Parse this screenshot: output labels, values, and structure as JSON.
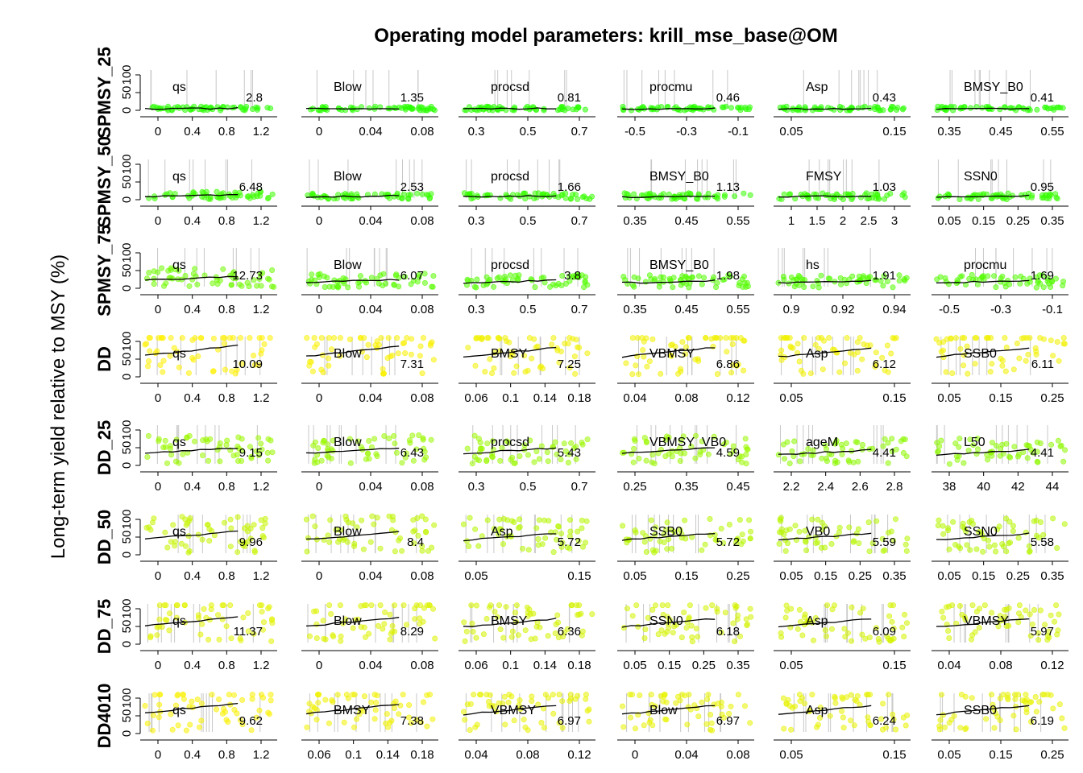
{
  "figure": {
    "title": "Operating model parameters: krill_mse_base@OM",
    "ylabel": "Long-term yield relative to MSY (%)",
    "y_ticks": [
      0,
      50,
      100
    ]
  },
  "chart_data": {
    "type": "scatter",
    "ylim": [
      0,
      100
    ],
    "rows": [
      {
        "label": "SPMSY_25",
        "panels": [
          {
            "param": "qs",
            "value": "2.8",
            "xlim": [
              0,
              1.2
            ],
            "ticks": [
              "0",
              "0.4",
              "0.8",
              "1.2"
            ],
            "level": 5
          },
          {
            "param": "Blow",
            "value": "1.35",
            "xlim": [
              0,
              0.08
            ],
            "ticks": [
              "0",
              "0.04",
              "0.08"
            ],
            "level": 5
          },
          {
            "param": "procsd",
            "value": "0.81",
            "xlim": [
              0.3,
              0.7
            ],
            "ticks": [
              "0.3",
              "0.5",
              "0.7"
            ],
            "level": 5
          },
          {
            "param": "procmu",
            "value": "0.46",
            "xlim": [
              -0.5,
              -0.1
            ],
            "ticks": [
              "-0.5",
              "-0.3",
              "-0.1"
            ],
            "level": 5
          },
          {
            "param": "Asp",
            "value": "0.43",
            "xlim": [
              0.05,
              0.15
            ],
            "ticks": [
              "0.05",
              "0.15"
            ],
            "level": 5
          },
          {
            "param": "BMSY_B0",
            "value": "0.41",
            "xlim": [
              0.35,
              0.55
            ],
            "ticks": [
              "0.35",
              "0.45",
              "0.55"
            ],
            "level": 5
          }
        ]
      },
      {
        "label": "SPMSY_50",
        "panels": [
          {
            "param": "qs",
            "value": "6.48",
            "xlim": [
              0,
              1.2
            ],
            "ticks": [
              "0",
              "0.4",
              "0.8",
              "1.2"
            ],
            "level": 12
          },
          {
            "param": "Blow",
            "value": "2.53",
            "xlim": [
              0,
              0.08
            ],
            "ticks": [
              "0",
              "0.04",
              "0.08"
            ],
            "level": 10
          },
          {
            "param": "procsd",
            "value": "1.66",
            "xlim": [
              0.3,
              0.7
            ],
            "ticks": [
              "0.3",
              "0.5",
              "0.7"
            ],
            "level": 10
          },
          {
            "param": "BMSY_B0",
            "value": "1.13",
            "xlim": [
              0.35,
              0.55
            ],
            "ticks": [
              "0.35",
              "0.45",
              "0.55"
            ],
            "level": 10
          },
          {
            "param": "FMSY",
            "value": "1.03",
            "xlim": [
              1,
              3
            ],
            "ticks": [
              "1",
              "1.5",
              "2",
              "2.5",
              "3"
            ],
            "level": 10
          },
          {
            "param": "SSN0",
            "value": "0.95",
            "xlim": [
              0.05,
              0.35
            ],
            "ticks": [
              "0.05",
              "0.15",
              "0.25",
              "0.35"
            ],
            "level": 10
          }
        ]
      },
      {
        "label": "SPMSY_75",
        "panels": [
          {
            "param": "qs",
            "value": "12.73",
            "xlim": [
              0,
              1.2
            ],
            "ticks": [
              "0",
              "0.4",
              "0.8",
              "1.2"
            ],
            "level": 30
          },
          {
            "param": "Blow",
            "value": "6.07",
            "xlim": [
              0,
              0.08
            ],
            "ticks": [
              "0",
              "0.04",
              "0.08"
            ],
            "level": 22
          },
          {
            "param": "procsd",
            "value": "3.8",
            "xlim": [
              0.3,
              0.7
            ],
            "ticks": [
              "0.3",
              "0.5",
              "0.7"
            ],
            "level": 20
          },
          {
            "param": "BMSY_B0",
            "value": "1.98",
            "xlim": [
              0.35,
              0.55
            ],
            "ticks": [
              "0.35",
              "0.45",
              "0.55"
            ],
            "level": 20
          },
          {
            "param": "hs",
            "value": "1.91",
            "xlim": [
              0.9,
              0.95
            ],
            "ticks": [
              "0.9",
              "0.92",
              "0.94"
            ],
            "level": 20
          },
          {
            "param": "procmu",
            "value": "1.69",
            "xlim": [
              -0.5,
              -0.1
            ],
            "ticks": [
              "-0.5",
              "-0.3",
              "-0.1"
            ],
            "level": 20
          }
        ]
      },
      {
        "label": "DD",
        "panels": [
          {
            "param": "qs",
            "value": "10.09",
            "xlim": [
              0,
              1.2
            ],
            "ticks": [
              "0",
              "0.4",
              "0.8",
              "1.2"
            ],
            "level": 80
          },
          {
            "param": "Blow",
            "value": "7.31",
            "xlim": [
              0,
              0.08
            ],
            "ticks": [
              "0",
              "0.04",
              "0.08"
            ],
            "level": 78
          },
          {
            "param": "BMSY",
            "value": "7.25",
            "xlim": [
              0.06,
              0.18
            ],
            "ticks": [
              "0.06",
              "0.1",
              "0.14",
              "0.18"
            ],
            "level": 75
          },
          {
            "param": "VBMSY",
            "value": "6.86",
            "xlim": [
              0.04,
              0.12
            ],
            "ticks": [
              "0.04",
              "0.08",
              "0.12"
            ],
            "level": 75
          },
          {
            "param": "Asp",
            "value": "6.12",
            "xlim": [
              0.05,
              0.15
            ],
            "ticks": [
              "0.05",
              "0.15"
            ],
            "level": 75
          },
          {
            "param": "SSB0",
            "value": "6.11",
            "xlim": [
              0.05,
              0.25
            ],
            "ticks": [
              "0.05",
              "0.15",
              "0.25"
            ],
            "level": 75
          }
        ]
      },
      {
        "label": "DD_25",
        "panels": [
          {
            "param": "qs",
            "value": "9.15",
            "xlim": [
              0,
              1.2
            ],
            "ticks": [
              "0",
              "0.4",
              "0.8",
              "1.2"
            ],
            "level": 45
          },
          {
            "param": "Blow",
            "value": "6.43",
            "xlim": [
              0,
              0.08
            ],
            "ticks": [
              "0",
              "0.04",
              "0.08"
            ],
            "level": 45
          },
          {
            "param": "procsd",
            "value": "5.43",
            "xlim": [
              0.3,
              0.7
            ],
            "ticks": [
              "0.3",
              "0.5",
              "0.7"
            ],
            "level": 45
          },
          {
            "param": "VBMSY_VB0",
            "value": "4.59",
            "xlim": [
              0.25,
              0.45
            ],
            "ticks": [
              "0.25",
              "0.35",
              "0.45"
            ],
            "level": 45
          },
          {
            "param": "ageM",
            "value": "4.41",
            "xlim": [
              2,
              2.8
            ],
            "ticks": [
              "2.2",
              "2.4",
              "2.6",
              "2.8"
            ],
            "level": 40
          },
          {
            "param": "L50",
            "value": "4.41",
            "xlim": [
              37,
              44
            ],
            "ticks": [
              "38",
              "40",
              "42",
              "44"
            ],
            "level": 40
          }
        ]
      },
      {
        "label": "DD_50",
        "panels": [
          {
            "param": "qs",
            "value": "9.96",
            "xlim": [
              0,
              1.2
            ],
            "ticks": [
              "0",
              "0.4",
              "0.8",
              "1.2"
            ],
            "level": 60
          },
          {
            "param": "Blow",
            "value": "8.4",
            "xlim": [
              0,
              0.08
            ],
            "ticks": [
              "0",
              "0.04",
              "0.08"
            ],
            "level": 58
          },
          {
            "param": "Asp",
            "value": "5.72",
            "xlim": [
              0.05,
              0.15
            ],
            "ticks": [
              "0.05",
              "0.15"
            ],
            "level": 55
          },
          {
            "param": "SSB0",
            "value": "5.72",
            "xlim": [
              0.05,
              0.25
            ],
            "ticks": [
              "0.05",
              "0.15",
              "0.25"
            ],
            "level": 55
          },
          {
            "param": "VB0",
            "value": "5.59",
            "xlim": [
              0.05,
              0.35
            ],
            "ticks": [
              "0.05",
              "0.15",
              "0.25",
              "0.35"
            ],
            "level": 55
          },
          {
            "param": "SSN0",
            "value": "5.58",
            "xlim": [
              0.05,
              0.35
            ],
            "ticks": [
              "0.05",
              "0.15",
              "0.25",
              "0.35"
            ],
            "level": 55
          }
        ]
      },
      {
        "label": "DD_75",
        "panels": [
          {
            "param": "qs",
            "value": "11.37",
            "xlim": [
              0,
              1.2
            ],
            "ticks": [
              "0",
              "0.4",
              "0.8",
              "1.2"
            ],
            "level": 70
          },
          {
            "param": "Blow",
            "value": "8.29",
            "xlim": [
              0,
              0.08
            ],
            "ticks": [
              "0",
              "0.04",
              "0.08"
            ],
            "level": 68
          },
          {
            "param": "BMSY",
            "value": "6.36",
            "xlim": [
              0.06,
              0.18
            ],
            "ticks": [
              "0.06",
              "0.1",
              "0.14",
              "0.18"
            ],
            "level": 65
          },
          {
            "param": "SSN0",
            "value": "6.18",
            "xlim": [
              0.05,
              0.35
            ],
            "ticks": [
              "0.05",
              "0.15",
              "0.25",
              "0.35"
            ],
            "level": 65
          },
          {
            "param": "Asp",
            "value": "6.09",
            "xlim": [
              0.05,
              0.15
            ],
            "ticks": [
              "0.05",
              "0.15"
            ],
            "level": 65
          },
          {
            "param": "VBMSY",
            "value": "5.97",
            "xlim": [
              0.04,
              0.12
            ],
            "ticks": [
              "0.04",
              "0.08",
              "0.12"
            ],
            "level": 65
          }
        ]
      },
      {
        "label": "DD4010",
        "panels": [
          {
            "param": "qs",
            "value": "9.62",
            "xlim": [
              0,
              1.2
            ],
            "ticks": [
              "0",
              "0.4",
              "0.8",
              "1.2"
            ],
            "level": 78
          },
          {
            "param": "BMSY",
            "value": "7.38",
            "xlim": [
              0.06,
              0.18
            ],
            "ticks": [
              "0.06",
              "0.1",
              "0.14",
              "0.18"
            ],
            "level": 75
          },
          {
            "param": "VBMSY",
            "value": "6.97",
            "xlim": [
              0.04,
              0.12
            ],
            "ticks": [
              "0.04",
              "0.08",
              "0.12"
            ],
            "level": 72
          },
          {
            "param": "Blow",
            "value": "6.97",
            "xlim": [
              0,
              0.08
            ],
            "ticks": [
              "0",
              "0.04",
              "0.08"
            ],
            "level": 72
          },
          {
            "param": "Asp",
            "value": "6.24",
            "xlim": [
              0.05,
              0.15
            ],
            "ticks": [
              "0.05",
              "0.15"
            ],
            "level": 72
          },
          {
            "param": "SSB0",
            "value": "6.19",
            "xlim": [
              0.05,
              0.25
            ],
            "ticks": [
              "0.05",
              "0.15",
              "0.25"
            ],
            "level": 72
          }
        ]
      }
    ],
    "colors": {
      "point_high": "#ffee00",
      "point_low": "#22ff22",
      "trend": "#000000",
      "rug": "#c8c8c8"
    }
  }
}
